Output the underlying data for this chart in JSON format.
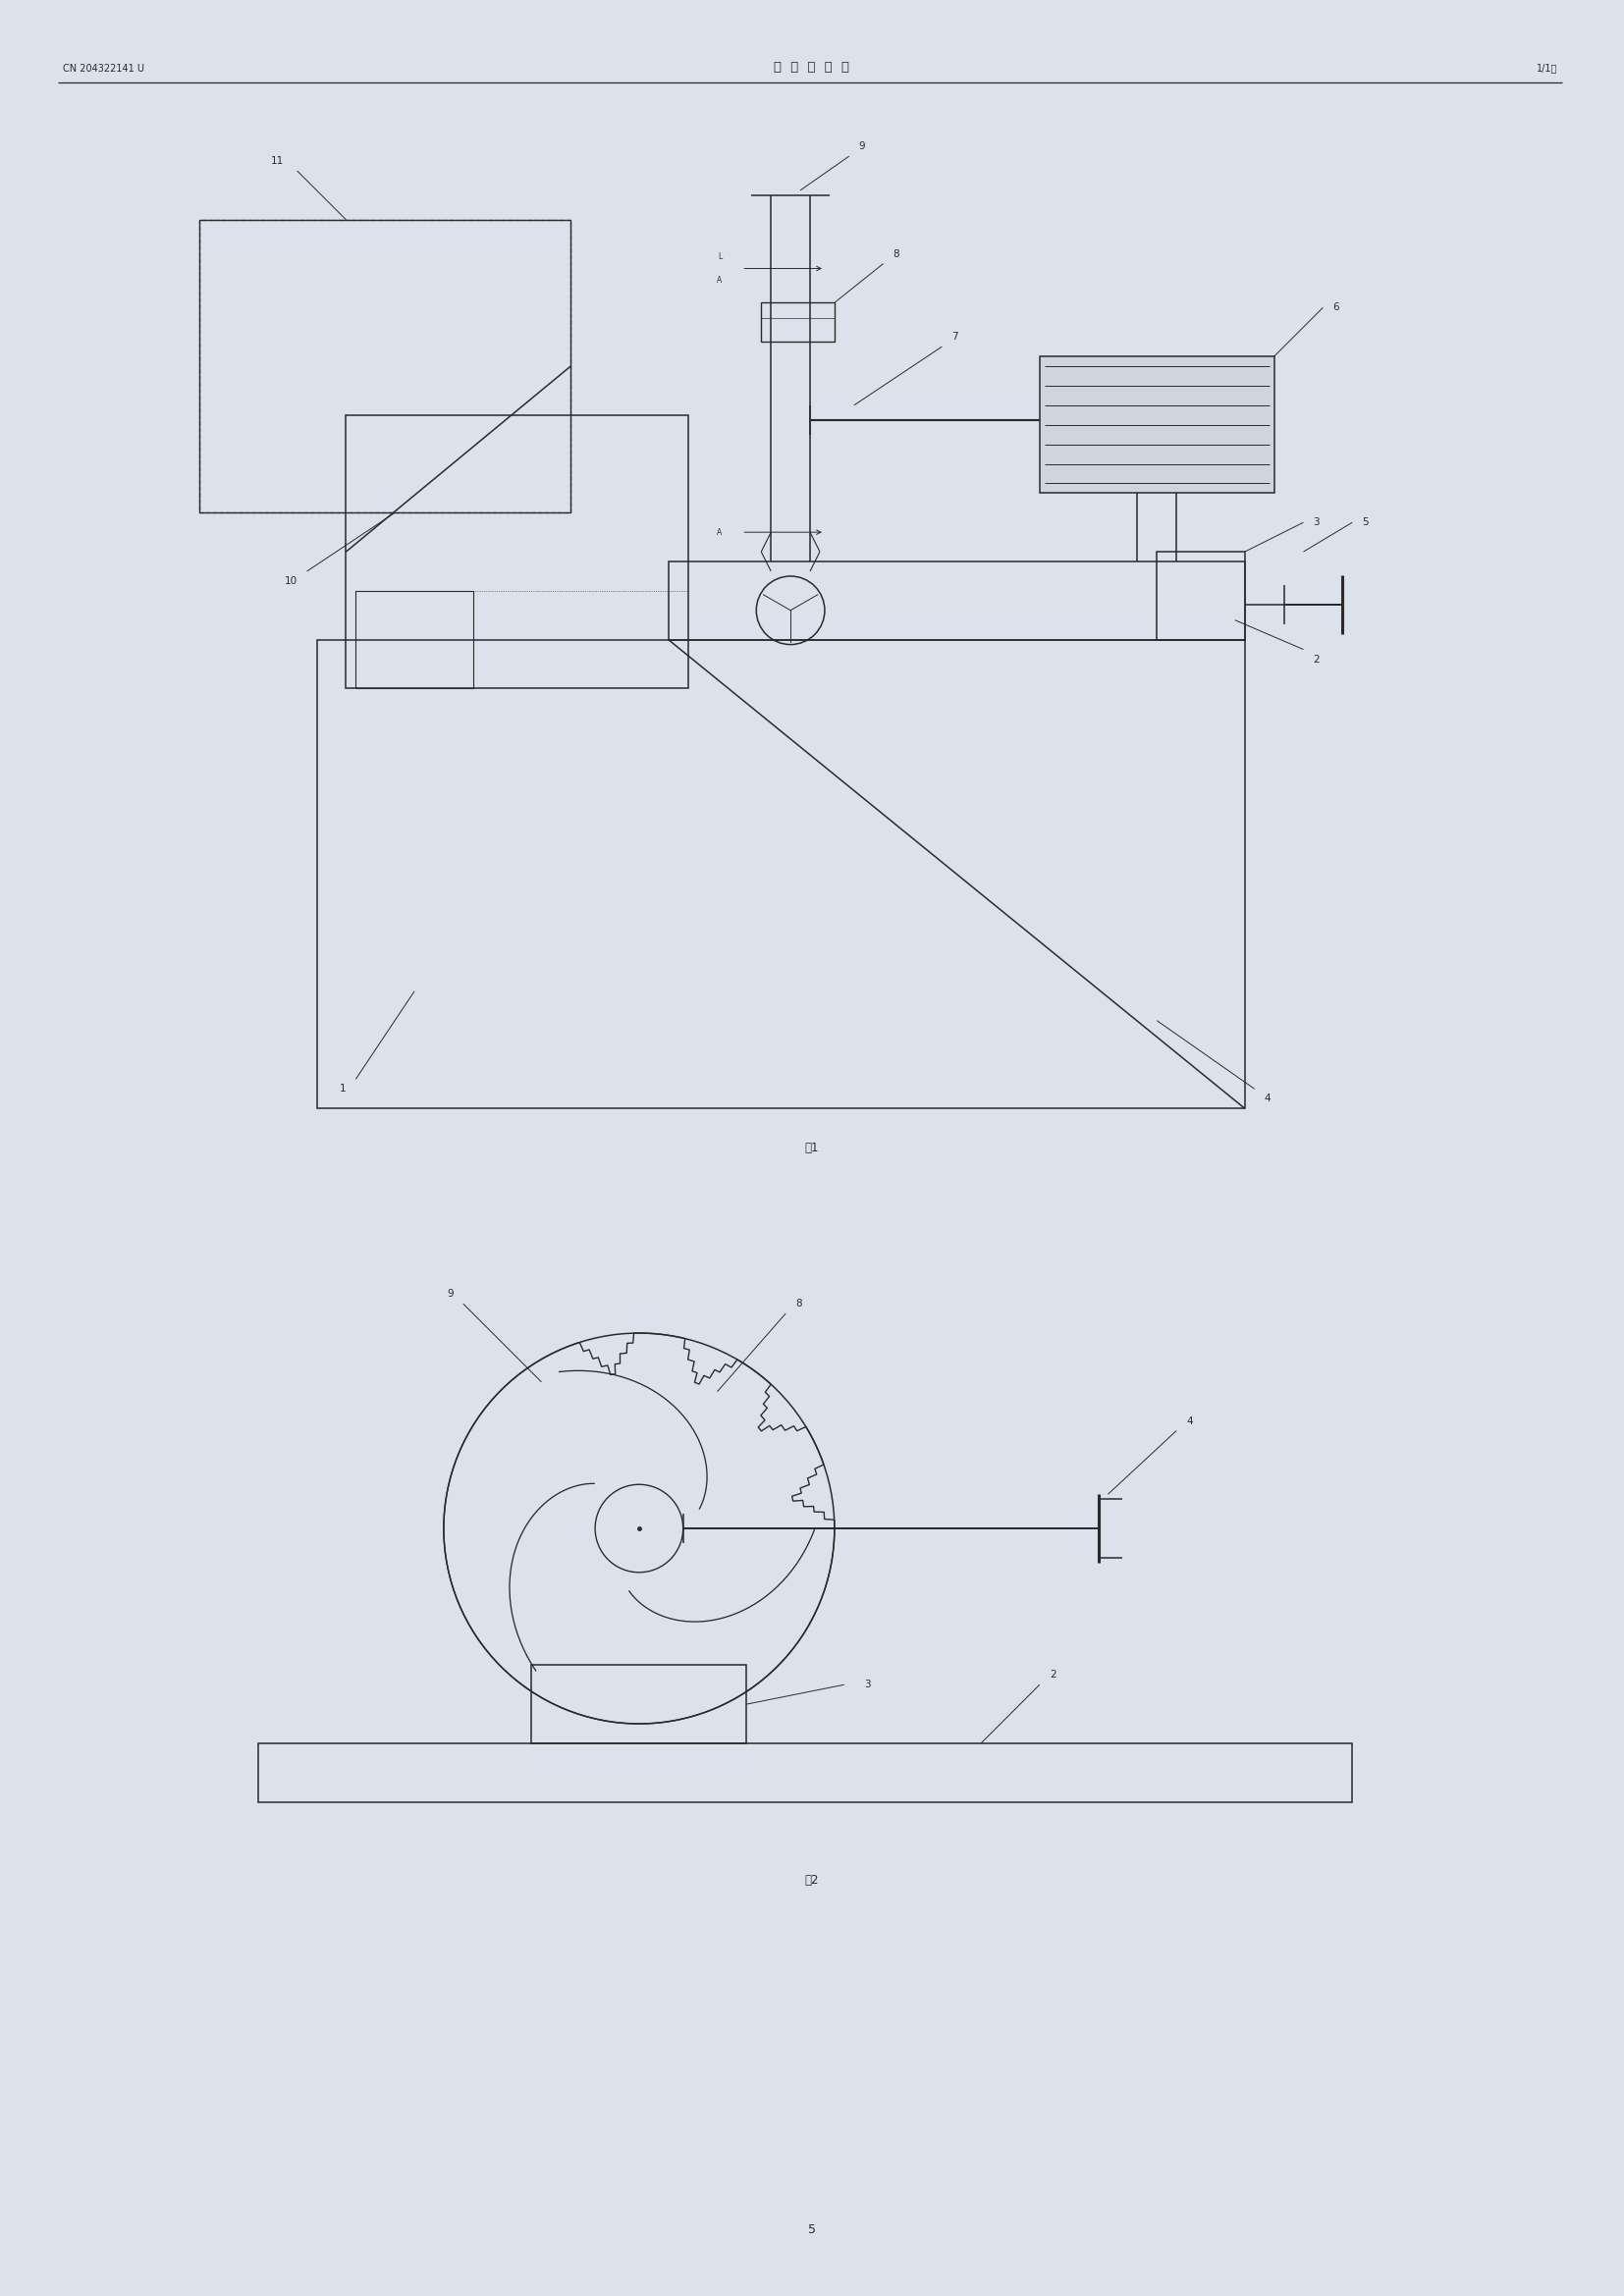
{
  "page_width": 16.54,
  "page_height": 23.39,
  "bg_color": "#dce2ec",
  "paper_color": "#e8ecf3",
  "line_color": "#2a2a2a",
  "header_left": "CN 204322141 U",
  "header_center": "说  明  书  附  图",
  "header_right": "1/1页",
  "fig1_label": "图1",
  "fig2_label": "图2",
  "page_num": "5",
  "lw": 1.1
}
